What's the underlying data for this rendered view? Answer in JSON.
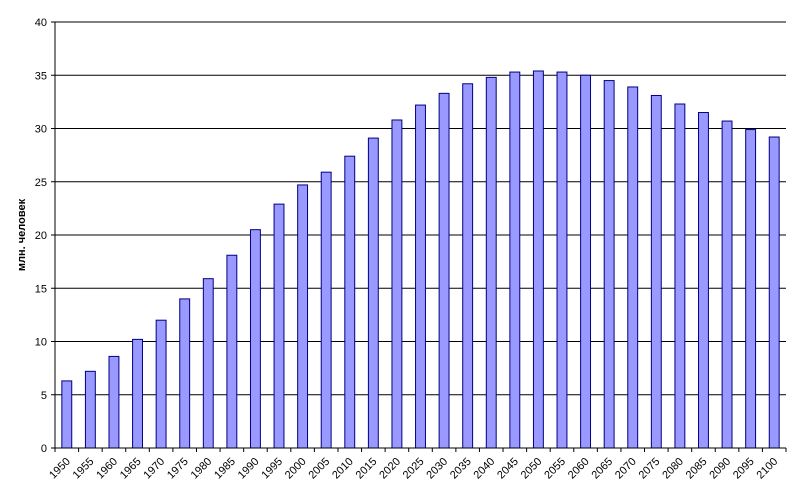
{
  "chart_data": {
    "type": "bar",
    "title": "",
    "xlabel": "",
    "ylabel": "млн. человек",
    "ylim": [
      0,
      40
    ],
    "yticks": [
      0,
      5,
      10,
      15,
      20,
      25,
      30,
      35,
      40
    ],
    "grid": true,
    "legend": "none",
    "bar_color": "#9999ff",
    "bar_edge_color": "#000080",
    "categories": [
      "1950",
      "1955",
      "1960",
      "1965",
      "1970",
      "1975",
      "1980",
      "1985",
      "1990",
      "1995",
      "2000",
      "2005",
      "2010",
      "2015",
      "2020",
      "2025",
      "2030",
      "2035",
      "2040",
      "2045",
      "2050",
      "2055",
      "2060",
      "2065",
      "2070",
      "2075",
      "2080",
      "2085",
      "2090",
      "2095",
      "2100"
    ],
    "values": [
      6.3,
      7.2,
      8.6,
      10.2,
      12.0,
      14.0,
      15.9,
      18.1,
      20.5,
      22.9,
      24.7,
      25.9,
      27.4,
      29.1,
      30.8,
      32.2,
      33.3,
      34.2,
      34.8,
      35.3,
      35.4,
      35.3,
      35.0,
      34.5,
      33.9,
      33.1,
      32.3,
      31.5,
      30.7,
      29.9,
      29.2
    ]
  }
}
